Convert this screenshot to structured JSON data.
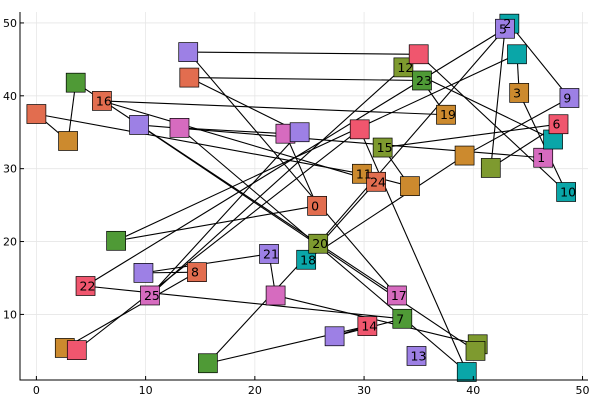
{
  "chart_data": {
    "type": "scatter",
    "title": "",
    "xlabel": "",
    "ylabel": "",
    "xlim": [
      -1.5,
      50.5
    ],
    "ylim": [
      1,
      51.5
    ],
    "xticks": [
      0,
      10,
      20,
      30,
      40,
      50
    ],
    "yticks": [
      10,
      20,
      30,
      40,
      50
    ],
    "grid": true,
    "legend": "none",
    "palette": [
      "#e26d4f",
      "#cc8a2e",
      "#7e9a2f",
      "#4f9a36",
      "#0aa6a8",
      "#9d80e5",
      "#d66bbf",
      "#f0566e"
    ],
    "edges": [
      [
        0,
        1
      ],
      [
        0,
        2
      ],
      [
        1,
        3
      ],
      [
        2,
        4
      ],
      [
        3,
        5
      ],
      [
        4,
        6
      ],
      [
        5,
        7
      ],
      [
        6,
        8
      ],
      [
        7,
        9
      ],
      [
        8,
        10
      ],
      [
        9,
        11
      ],
      [
        10,
        12
      ],
      [
        11,
        13
      ],
      [
        12,
        14
      ],
      [
        13,
        15
      ],
      [
        14,
        16
      ],
      [
        15,
        17
      ],
      [
        16,
        18
      ],
      [
        17,
        19
      ],
      [
        18,
        20
      ],
      [
        19,
        21
      ],
      [
        20,
        22
      ],
      [
        21,
        23
      ],
      [
        22,
        24
      ],
      [
        23,
        25
      ],
      [
        24,
        26
      ],
      [
        25,
        27
      ],
      [
        26,
        28
      ],
      [
        27,
        29
      ],
      [
        28,
        30
      ],
      [
        29,
        31
      ],
      [
        30,
        32
      ],
      [
        31,
        33
      ],
      [
        32,
        34
      ],
      [
        33,
        35
      ],
      [
        34,
        36
      ],
      [
        35,
        37
      ],
      [
        36,
        38
      ],
      [
        37,
        39
      ],
      [
        38,
        40
      ],
      [
        39,
        41
      ],
      [
        40,
        42
      ],
      [
        41,
        43
      ],
      [
        42,
        44
      ],
      [
        43,
        45
      ],
      [
        44,
        46
      ],
      [
        45,
        47
      ],
      [
        46,
        48
      ],
      [
        47,
        49
      ],
      [
        48,
        49
      ]
    ],
    "nodes": [
      {
        "x": 2.6,
        "y": 5.4,
        "color": 1,
        "label": ""
      },
      {
        "x": 3.7,
        "y": 5.1,
        "color": 7,
        "label": ""
      },
      {
        "x": 14.7,
        "y": 15.8,
        "color": 0,
        "label": "8"
      },
      {
        "x": 29.6,
        "y": 35.4,
        "color": 7,
        "label": ""
      },
      {
        "x": 9.8,
        "y": 15.7,
        "color": 5,
        "label": ""
      },
      {
        "x": 39.4,
        "y": 2.1,
        "color": 4,
        "label": ""
      },
      {
        "x": 21.3,
        "y": 18.3,
        "color": 5,
        "label": "21"
      },
      {
        "x": 13.1,
        "y": 35.6,
        "color": 6,
        "label": ""
      },
      {
        "x": 21.9,
        "y": 12.6,
        "color": 6,
        "label": ""
      },
      {
        "x": 22.8,
        "y": 34.8,
        "color": 6,
        "label": ""
      },
      {
        "x": 40.4,
        "y": 5.9,
        "color": 2,
        "label": ""
      },
      {
        "x": 25.7,
        "y": 24.9,
        "color": 0,
        "label": "0"
      },
      {
        "x": 40.2,
        "y": 5.0,
        "color": 2,
        "label": ""
      },
      {
        "x": 7.3,
        "y": 20.1,
        "color": 3,
        "label": ""
      },
      {
        "x": 9.4,
        "y": 36.0,
        "color": 5,
        "label": ""
      },
      {
        "x": 44.0,
        "y": 45.7,
        "color": 4,
        "label": ""
      },
      {
        "x": 46.4,
        "y": 31.5,
        "color": 6,
        "label": "1"
      },
      {
        "x": 44.2,
        "y": 40.4,
        "color": 1,
        "label": "3"
      },
      {
        "x": 47.3,
        "y": 34.0,
        "color": 4,
        "label": ""
      },
      {
        "x": 48.5,
        "y": 26.8,
        "color": 4,
        "label": "10"
      },
      {
        "x": 33.6,
        "y": 43.9,
        "color": 2,
        "label": "12"
      },
      {
        "x": 35.0,
        "y": 45.7,
        "color": 7,
        "label": ""
      },
      {
        "x": 10.4,
        "y": 12.6,
        "color": 6,
        "label": "25"
      },
      {
        "x": 13.9,
        "y": 46.0,
        "color": 5,
        "label": ""
      },
      {
        "x": 24.1,
        "y": 35.0,
        "color": 5,
        "label": ""
      },
      {
        "x": 33.0,
        "y": 12.6,
        "color": 6,
        "label": "17"
      },
      {
        "x": 14.0,
        "y": 42.5,
        "color": 0,
        "label": ""
      },
      {
        "x": 3.6,
        "y": 41.8,
        "color": 3,
        "label": ""
      },
      {
        "x": 35.3,
        "y": 42.1,
        "color": 3,
        "label": "23"
      },
      {
        "x": 2.9,
        "y": 33.8,
        "color": 1,
        "label": ""
      },
      {
        "x": 37.5,
        "y": 37.4,
        "color": 1,
        "label": "19"
      },
      {
        "x": 0.0,
        "y": 37.5,
        "color": 0,
        "label": ""
      },
      {
        "x": 6.0,
        "y": 39.3,
        "color": 0,
        "label": "16"
      },
      {
        "x": 29.8,
        "y": 29.3,
        "color": 1,
        "label": "11"
      },
      {
        "x": 31.1,
        "y": 28.2,
        "color": 0,
        "label": "24"
      },
      {
        "x": 34.2,
        "y": 27.6,
        "color": 1,
        "label": ""
      },
      {
        "x": 24.7,
        "y": 17.5,
        "color": 4,
        "label": "18"
      },
      {
        "x": 31.7,
        "y": 32.9,
        "color": 2,
        "label": "15"
      },
      {
        "x": 39.2,
        "y": 31.8,
        "color": 1,
        "label": ""
      },
      {
        "x": 47.8,
        "y": 36.1,
        "color": 7,
        "label": "6"
      },
      {
        "x": 48.8,
        "y": 39.7,
        "color": 5,
        "label": "9"
      },
      {
        "x": 41.6,
        "y": 30.1,
        "color": 2,
        "label": ""
      },
      {
        "x": 43.3,
        "y": 49.9,
        "color": 4,
        "label": "2"
      },
      {
        "x": 42.9,
        "y": 49.2,
        "color": 5,
        "label": "5"
      },
      {
        "x": 25.8,
        "y": 19.7,
        "color": 2,
        "label": "20"
      },
      {
        "x": 4.5,
        "y": 13.9,
        "color": 7,
        "label": "22"
      },
      {
        "x": 15.7,
        "y": 3.3,
        "color": 3,
        "label": ""
      },
      {
        "x": 33.5,
        "y": 9.4,
        "color": 3,
        "label": "7"
      },
      {
        "x": 30.3,
        "y": 8.4,
        "color": 7,
        "label": "14"
      },
      {
        "x": 27.3,
        "y": 7.0,
        "color": 5,
        "label": ""
      },
      {
        "x": 34.8,
        "y": 4.3,
        "color": 5,
        "label": "13"
      }
    ]
  }
}
